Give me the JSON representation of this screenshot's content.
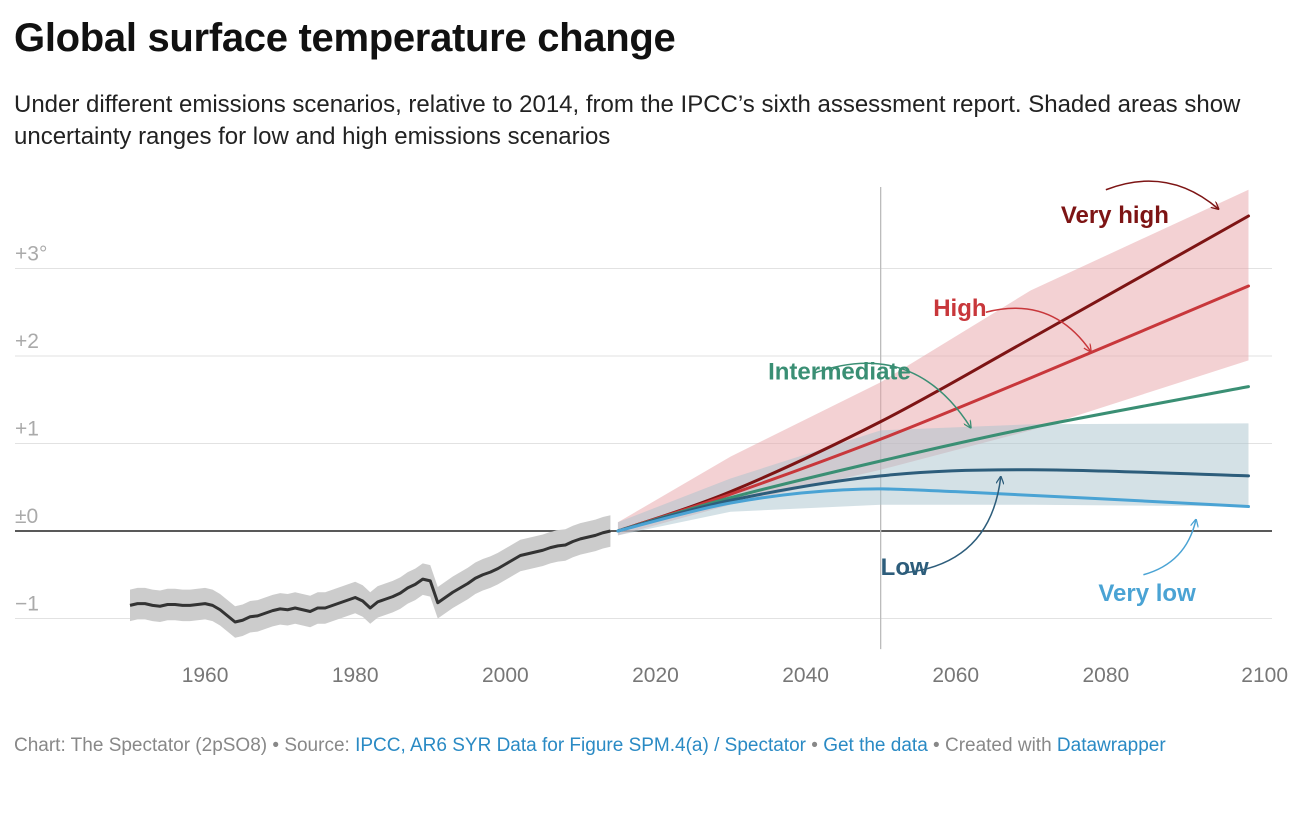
{
  "chart_data": {
    "type": "line",
    "title": "Global surface temperature change",
    "subtitle": "Under different emissions scenarios, relative to 2014, from the IPCC’s sixth assessment report. Shaded areas show uncertainty ranges for low and high emissions scenarios",
    "xlim": [
      1950,
      2100
    ],
    "ylim": [
      -1.35,
      4.0
    ],
    "x_ticks": [
      1960,
      1980,
      2000,
      2020,
      2040,
      2060,
      2080,
      2100
    ],
    "x_tick_labels": [
      "1960",
      "1980",
      "2000",
      "2020",
      "2040",
      "2060",
      "2080",
      "2100"
    ],
    "y_ticks": [
      3,
      2,
      1,
      0,
      -1
    ],
    "y_tick_labels": [
      "+3°",
      "+2",
      "+1",
      "±0",
      "−1"
    ],
    "grid": true,
    "reference_line_x": 2050,
    "historical": {
      "color": "#333333",
      "band_color": "#cccccc",
      "x": [
        1950,
        1951,
        1952,
        1953,
        1954,
        1955,
        1956,
        1957,
        1958,
        1959,
        1960,
        1961,
        1962,
        1963,
        1964,
        1965,
        1966,
        1967,
        1968,
        1969,
        1970,
        1971,
        1972,
        1973,
        1974,
        1975,
        1976,
        1977,
        1978,
        1979,
        1980,
        1981,
        1982,
        1983,
        1984,
        1985,
        1986,
        1987,
        1988,
        1989,
        1990,
        1991,
        1992,
        1993,
        1994,
        1995,
        1996,
        1997,
        1998,
        1999,
        2000,
        2001,
        2002,
        2003,
        2004,
        2005,
        2006,
        2007,
        2008,
        2009,
        2010,
        2011,
        2012,
        2013,
        2014
      ],
      "y": [
        -0.85,
        -0.83,
        -0.83,
        -0.85,
        -0.86,
        -0.84,
        -0.84,
        -0.85,
        -0.85,
        -0.84,
        -0.83,
        -0.85,
        -0.9,
        -0.97,
        -1.04,
        -1.02,
        -0.98,
        -0.97,
        -0.94,
        -0.91,
        -0.89,
        -0.9,
        -0.88,
        -0.9,
        -0.92,
        -0.88,
        -0.88,
        -0.85,
        -0.82,
        -0.79,
        -0.76,
        -0.8,
        -0.88,
        -0.81,
        -0.78,
        -0.75,
        -0.71,
        -0.65,
        -0.61,
        -0.55,
        -0.57,
        -0.82,
        -0.76,
        -0.7,
        -0.65,
        -0.6,
        -0.54,
        -0.5,
        -0.47,
        -0.43,
        -0.38,
        -0.33,
        -0.28,
        -0.26,
        -0.24,
        -0.22,
        -0.19,
        -0.17,
        -0.16,
        -0.12,
        -0.09,
        -0.07,
        -0.05,
        -0.02,
        0.0
      ],
      "band": 0.18
    },
    "bands": [
      {
        "name": "High",
        "color": "#e8a4a8",
        "x": [
          2015,
          2030,
          2050,
          2070,
          2099
        ],
        "lower": [
          -0.05,
          0.3,
          0.7,
          1.15,
          1.95
        ],
        "upper": [
          0.1,
          0.85,
          1.7,
          2.75,
          3.9
        ]
      },
      {
        "name": "Low",
        "color": "#a9c3ce",
        "x": [
          2015,
          2030,
          2050,
          2070,
          2099
        ],
        "lower": [
          -0.05,
          0.22,
          0.3,
          0.3,
          0.28
        ],
        "upper": [
          0.1,
          0.6,
          1.15,
          1.22,
          1.23
        ]
      }
    ],
    "series": [
      {
        "name": "Very high",
        "color": "#7d1414",
        "x": [
          2015,
          2030,
          2050,
          2070,
          2099
        ],
        "y": [
          0.0,
          0.45,
          1.25,
          2.2,
          3.6
        ]
      },
      {
        "name": "High",
        "color": "#c8373b",
        "x": [
          2015,
          2030,
          2050,
          2070,
          2099
        ],
        "y": [
          0.0,
          0.42,
          1.05,
          1.75,
          2.8
        ]
      },
      {
        "name": "Intermediate",
        "color": "#3a8f74",
        "x": [
          2015,
          2030,
          2050,
          2070,
          2099
        ],
        "y": [
          0.0,
          0.38,
          0.8,
          1.18,
          1.65
        ]
      },
      {
        "name": "Low",
        "color": "#2d5d7b",
        "x": [
          2015,
          2030,
          2050,
          2070,
          2099
        ],
        "y": [
          0.0,
          0.35,
          0.63,
          0.7,
          0.63
        ]
      },
      {
        "name": "Very low",
        "color": "#4aa3d4",
        "x": [
          2015,
          2030,
          2045,
          2060,
          2099
        ],
        "y": [
          0.0,
          0.32,
          0.47,
          0.45,
          0.28
        ]
      }
    ],
    "annotations": [
      {
        "text": "Very high",
        "color": "#7d1414",
        "text_x": 2074,
        "text_y": 3.52,
        "from": [
          2080,
          3.9
        ],
        "to": [
          2095,
          3.68
        ],
        "bend": -0.3
      },
      {
        "text": "High",
        "color": "#c8373b",
        "text_x": 2057,
        "text_y": 2.46,
        "from": [
          2064,
          2.5
        ],
        "to": [
          2078,
          2.05
        ],
        "bend": -0.35
      },
      {
        "text": "Intermediate",
        "color": "#3a8f74",
        "text_x": 2035,
        "text_y": 1.73,
        "from": [
          2041,
          1.8
        ],
        "to": [
          2062,
          1.18
        ],
        "bend": -0.4
      },
      {
        "text": "Low",
        "color": "#2d5d7b",
        "text_x": 2050,
        "text_y": -0.5,
        "from": [
          2053,
          -0.48
        ],
        "to": [
          2066,
          0.62
        ],
        "bend": 0.4
      },
      {
        "text": "Very low",
        "color": "#4aa3d4",
        "text_x": 2079,
        "text_y": -0.8,
        "from": [
          2085,
          -0.5
        ],
        "to": [
          2092,
          0.13
        ],
        "bend": 0.3
      }
    ]
  },
  "footer": {
    "prefix": "Chart: The Spectator (2pSO8) • Source: ",
    "source_link": "IPCC, AR6 SYR Data for Figure SPM.4(a) / Spectator",
    "sep": " • ",
    "data_link": "Get the data",
    "suffix": " • Created with ",
    "tool_link": "Datawrapper"
  }
}
